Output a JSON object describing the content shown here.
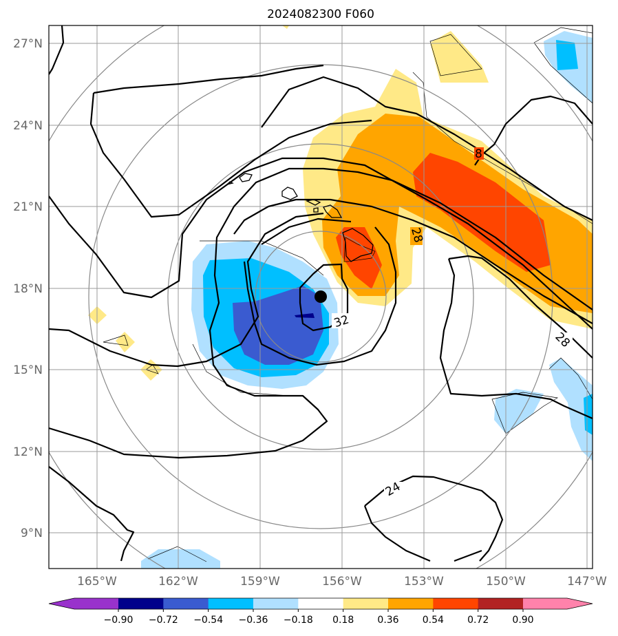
{
  "title": "2024082300 F060",
  "map": {
    "lat_labels": [
      "27°N",
      "24°N",
      "21°N",
      "18°N",
      "15°N",
      "12°N",
      "9°N"
    ],
    "lon_labels": [
      "165°W",
      "162°W",
      "159°W",
      "156°W",
      "153°W",
      "150°W",
      "147°W"
    ],
    "contour_labels": [
      "32",
      "28",
      "28",
      "24",
      "8"
    ],
    "storm_center": "black-dot-marker"
  },
  "colorbar": {
    "ticks": [
      "−0.90",
      "−0.72",
      "−0.54",
      "−0.36",
      "−0.18",
      "0.18",
      "0.36",
      "0.54",
      "0.72",
      "0.90"
    ],
    "colors": [
      "#9932CC",
      "#00008B",
      "#3A5BD0",
      "#00BFFF",
      "#B0E0FF",
      "#FFFFFF",
      "#FFE987",
      "#FFA500",
      "#FF4500",
      "#B22222",
      "#FF82AB"
    ]
  }
}
